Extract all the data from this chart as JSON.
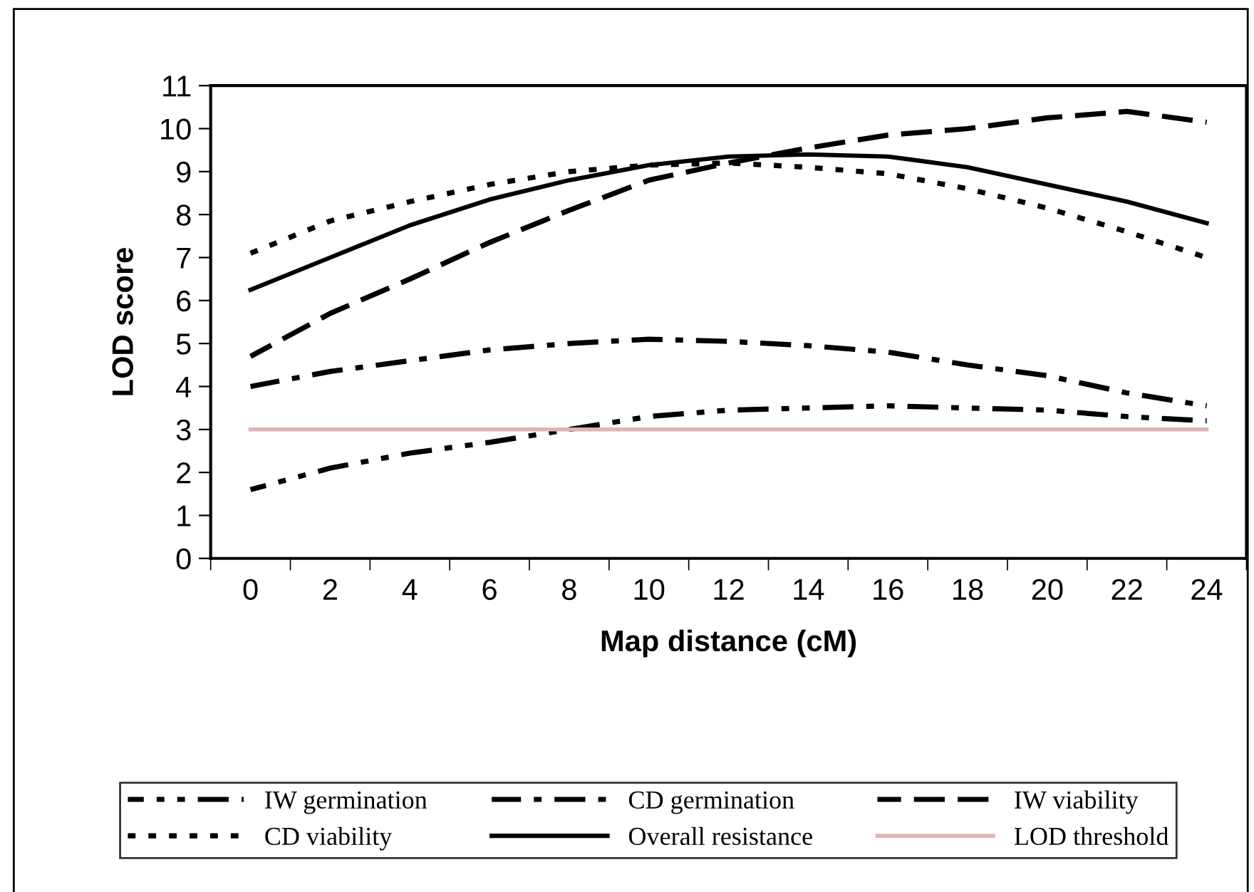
{
  "chart_data": {
    "type": "line",
    "xlabel": "Map distance (cM)",
    "ylabel": "LOD score",
    "categories": [
      "0",
      "2",
      "4",
      "6",
      "8",
      "10",
      "12",
      "14",
      "16",
      "18",
      "20",
      "22",
      "24"
    ],
    "ylim": [
      0,
      11
    ],
    "yticks": [
      0,
      1,
      2,
      3,
      4,
      5,
      6,
      7,
      8,
      9,
      10,
      11
    ],
    "grid": false,
    "legend": "bottom",
    "marker": "none",
    "series": [
      {
        "name": "IW germination",
        "color": "#000000",
        "line_style": "dashdotdot",
        "values": [
          1.6,
          2.1,
          2.45,
          2.7,
          3.0,
          3.3,
          3.45,
          3.5,
          3.55,
          3.5,
          3.45,
          3.3,
          3.2
        ]
      },
      {
        "name": "CD germination",
        "color": "#000000",
        "line_style": "dashdot",
        "values": [
          4.0,
          4.35,
          4.6,
          4.85,
          5.0,
          5.1,
          5.05,
          4.95,
          4.8,
          4.5,
          4.25,
          3.85,
          3.55
        ]
      },
      {
        "name": "IW viability",
        "color": "#000000",
        "line_style": "dashed",
        "values": [
          4.7,
          5.7,
          6.5,
          7.35,
          8.1,
          8.8,
          9.2,
          9.55,
          9.85,
          10.0,
          10.25,
          10.4,
          10.15
        ]
      },
      {
        "name": "CD viability",
        "color": "#000000",
        "line_style": "dotted",
        "values": [
          7.1,
          7.85,
          8.3,
          8.7,
          9.0,
          9.15,
          9.2,
          9.1,
          8.95,
          8.6,
          8.15,
          7.6,
          7.0
        ]
      },
      {
        "name": "Overall resistance",
        "color": "#000000",
        "line_style": "solid",
        "values": [
          6.25,
          7.0,
          7.75,
          8.35,
          8.8,
          9.15,
          9.35,
          9.4,
          9.35,
          9.1,
          8.7,
          8.3,
          7.8
        ]
      },
      {
        "name": "LOD threshold",
        "color": "#e0b4b4",
        "line_style": "solid",
        "values": [
          3,
          3,
          3,
          3,
          3,
          3,
          3,
          3,
          3,
          3,
          3,
          3,
          3
        ]
      }
    ]
  }
}
